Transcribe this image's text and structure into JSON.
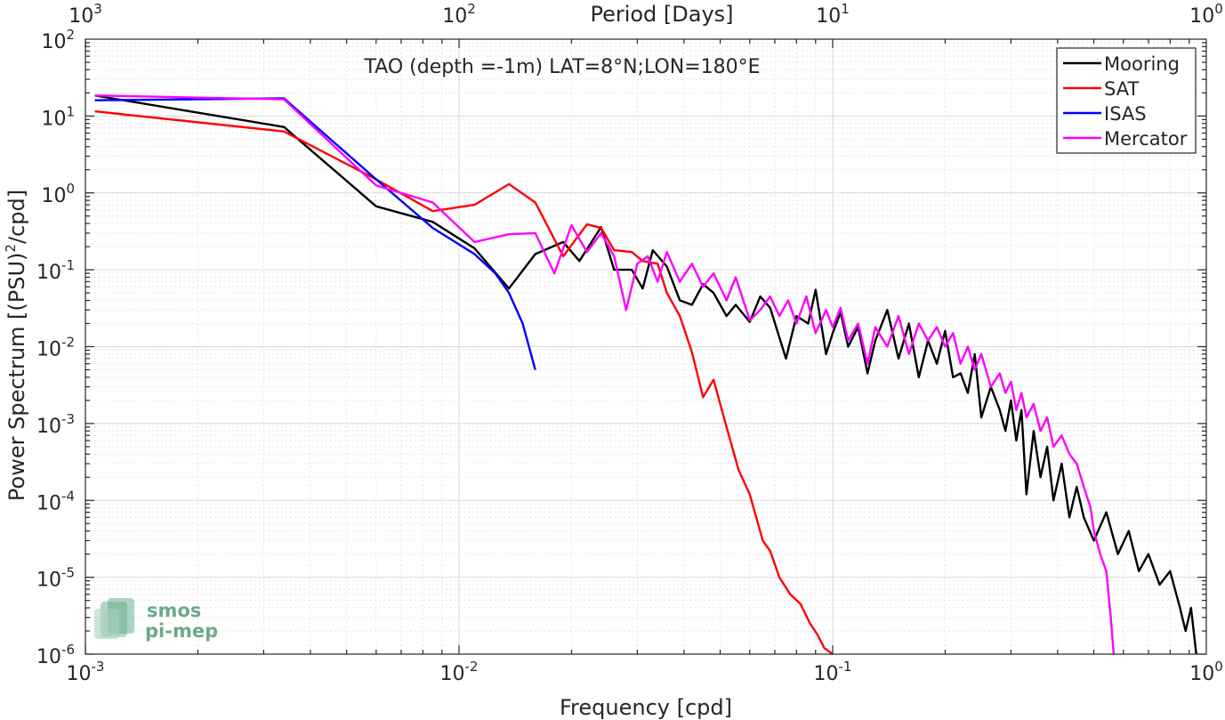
{
  "chart_data": {
    "type": "line",
    "title": "TAO (depth =-1m) LAT=8°N;LON=180°E",
    "xlabel": "Frequency [cpd]",
    "ylabel": "Power Spectrum [(PSU)",
    "ylabel_sup": "2",
    "ylabel_tail": "/cpd]",
    "top_xlabel": "Period [Days]",
    "x_scale": "log",
    "y_scale": "log",
    "xlim": [
      0.001,
      1
    ],
    "ylim": [
      1e-06,
      100
    ],
    "grid": true,
    "legend_position": "top-right",
    "x_ticks": [
      {
        "value": 0.001,
        "base": "10",
        "exp": "-3"
      },
      {
        "value": 0.01,
        "base": "10",
        "exp": "-2"
      },
      {
        "value": 0.1,
        "base": "10",
        "exp": "-1"
      },
      {
        "value": 1,
        "base": "10",
        "exp": "0"
      }
    ],
    "y_ticks": [
      {
        "value": 1e-06,
        "base": "10",
        "exp": "-6"
      },
      {
        "value": 1e-05,
        "base": "10",
        "exp": "-5"
      },
      {
        "value": 0.0001,
        "base": "10",
        "exp": "-4"
      },
      {
        "value": 0.001,
        "base": "10",
        "exp": "-3"
      },
      {
        "value": 0.01,
        "base": "10",
        "exp": "-2"
      },
      {
        "value": 0.1,
        "base": "10",
        "exp": "-1"
      },
      {
        "value": 1,
        "base": "10",
        "exp": "0"
      },
      {
        "value": 10,
        "base": "10",
        "exp": "1"
      },
      {
        "value": 100,
        "base": "10",
        "exp": "2"
      }
    ],
    "top_ticks": [
      {
        "value": 0.001,
        "base": "10",
        "exp": "3"
      },
      {
        "value": 0.01,
        "base": "10",
        "exp": "2"
      },
      {
        "value": 0.1,
        "base": "10",
        "exp": "1"
      },
      {
        "value": 1,
        "base": "10",
        "exp": "0"
      }
    ],
    "series": [
      {
        "name": "Mooring",
        "color": "#000000",
        "points": [
          [
            0.00106,
            18.5
          ],
          [
            0.0034,
            7.2
          ],
          [
            0.006,
            0.67
          ],
          [
            0.0085,
            0.42
          ],
          [
            0.011,
            0.19
          ],
          [
            0.0136,
            0.057
          ],
          [
            0.016,
            0.16
          ],
          [
            0.019,
            0.23
          ],
          [
            0.021,
            0.13
          ],
          [
            0.024,
            0.36
          ],
          [
            0.026,
            0.1
          ],
          [
            0.029,
            0.1
          ],
          [
            0.031,
            0.057
          ],
          [
            0.033,
            0.18
          ],
          [
            0.036,
            0.11
          ],
          [
            0.039,
            0.04
          ],
          [
            0.042,
            0.035
          ],
          [
            0.045,
            0.065
          ],
          [
            0.048,
            0.05
          ],
          [
            0.052,
            0.025
          ],
          [
            0.055,
            0.035
          ],
          [
            0.06,
            0.021
          ],
          [
            0.064,
            0.045
          ],
          [
            0.068,
            0.032
          ],
          [
            0.075,
            0.007
          ],
          [
            0.08,
            0.025
          ],
          [
            0.086,
            0.02
          ],
          [
            0.09,
            0.055
          ],
          [
            0.096,
            0.008
          ],
          [
            0.1,
            0.015
          ],
          [
            0.105,
            0.028
          ],
          [
            0.11,
            0.01
          ],
          [
            0.117,
            0.018
          ],
          [
            0.124,
            0.0045
          ],
          [
            0.13,
            0.012
          ],
          [
            0.14,
            0.03
          ],
          [
            0.15,
            0.007
          ],
          [
            0.16,
            0.02
          ],
          [
            0.17,
            0.004
          ],
          [
            0.18,
            0.012
          ],
          [
            0.19,
            0.006
          ],
          [
            0.2,
            0.016
          ],
          [
            0.21,
            0.004
          ],
          [
            0.22,
            0.0045
          ],
          [
            0.23,
            0.0025
          ],
          [
            0.24,
            0.008
          ],
          [
            0.25,
            0.0012
          ],
          [
            0.265,
            0.003
          ],
          [
            0.28,
            0.0015
          ],
          [
            0.29,
            0.0008
          ],
          [
            0.3,
            0.002
          ],
          [
            0.31,
            0.0006
          ],
          [
            0.32,
            0.0015
          ],
          [
            0.33,
            0.00012
          ],
          [
            0.345,
            0.0008
          ],
          [
            0.36,
            0.0002
          ],
          [
            0.375,
            0.0005
          ],
          [
            0.39,
            0.0001
          ],
          [
            0.41,
            0.0003
          ],
          [
            0.43,
            6e-05
          ],
          [
            0.45,
            0.00015
          ],
          [
            0.47,
            6e-05
          ],
          [
            0.5,
            3e-05
          ],
          [
            0.54,
            7e-05
          ],
          [
            0.58,
            2e-05
          ],
          [
            0.62,
            4e-05
          ],
          [
            0.66,
            1.2e-05
          ],
          [
            0.7,
            2e-05
          ],
          [
            0.75,
            8e-06
          ],
          [
            0.8,
            1.2e-05
          ],
          [
            0.85,
            4e-06
          ],
          [
            0.88,
            2e-06
          ],
          [
            0.91,
            4e-06
          ],
          [
            0.94,
            1e-06
          ]
        ]
      },
      {
        "name": "SAT",
        "color": "#ff0000",
        "points": [
          [
            0.00106,
            11.5
          ],
          [
            0.0034,
            6.3
          ],
          [
            0.006,
            1.5
          ],
          [
            0.0085,
            0.58
          ],
          [
            0.011,
            0.7
          ],
          [
            0.0136,
            1.3
          ],
          [
            0.016,
            0.75
          ],
          [
            0.019,
            0.15
          ],
          [
            0.022,
            0.39
          ],
          [
            0.024,
            0.35
          ],
          [
            0.026,
            0.18
          ],
          [
            0.029,
            0.17
          ],
          [
            0.031,
            0.13
          ],
          [
            0.034,
            0.12
          ],
          [
            0.036,
            0.05
          ],
          [
            0.039,
            0.025
          ],
          [
            0.042,
            0.0085
          ],
          [
            0.045,
            0.0022
          ],
          [
            0.048,
            0.0037
          ],
          [
            0.052,
            0.0009
          ],
          [
            0.056,
            0.00025
          ],
          [
            0.06,
            0.00012
          ],
          [
            0.065,
            3e-05
          ],
          [
            0.068,
            2.2e-05
          ],
          [
            0.072,
            1e-05
          ],
          [
            0.077,
            6e-06
          ],
          [
            0.082,
            4.5e-06
          ],
          [
            0.087,
            2.5e-06
          ],
          [
            0.091,
            1.8e-06
          ],
          [
            0.095,
            1.2e-06
          ],
          [
            0.1,
            1e-06
          ]
        ]
      },
      {
        "name": "ISAS",
        "color": "#0000ff",
        "points": [
          [
            0.00106,
            16
          ],
          [
            0.0034,
            17
          ],
          [
            0.006,
            1.5
          ],
          [
            0.0085,
            0.35
          ],
          [
            0.011,
            0.16
          ],
          [
            0.0125,
            0.09
          ],
          [
            0.0136,
            0.05
          ],
          [
            0.0148,
            0.02
          ],
          [
            0.016,
            0.005
          ]
        ]
      },
      {
        "name": "Mercator",
        "color": "#ff00ff",
        "points": [
          [
            0.00106,
            18.5
          ],
          [
            0.0034,
            16.5
          ],
          [
            0.006,
            1.25
          ],
          [
            0.0085,
            0.75
          ],
          [
            0.011,
            0.23
          ],
          [
            0.0136,
            0.29
          ],
          [
            0.016,
            0.3
          ],
          [
            0.018,
            0.09
          ],
          [
            0.02,
            0.38
          ],
          [
            0.022,
            0.17
          ],
          [
            0.024,
            0.3
          ],
          [
            0.026,
            0.15
          ],
          [
            0.028,
            0.03
          ],
          [
            0.03,
            0.12
          ],
          [
            0.032,
            0.15
          ],
          [
            0.034,
            0.07
          ],
          [
            0.036,
            0.17
          ],
          [
            0.039,
            0.07
          ],
          [
            0.042,
            0.12
          ],
          [
            0.045,
            0.06
          ],
          [
            0.048,
            0.09
          ],
          [
            0.052,
            0.04
          ],
          [
            0.055,
            0.08
          ],
          [
            0.06,
            0.022
          ],
          [
            0.064,
            0.03
          ],
          [
            0.068,
            0.045
          ],
          [
            0.072,
            0.025
          ],
          [
            0.076,
            0.04
          ],
          [
            0.08,
            0.02
          ],
          [
            0.085,
            0.045
          ],
          [
            0.09,
            0.015
          ],
          [
            0.096,
            0.03
          ],
          [
            0.1,
            0.018
          ],
          [
            0.105,
            0.032
          ],
          [
            0.11,
            0.012
          ],
          [
            0.117,
            0.02
          ],
          [
            0.124,
            0.006
          ],
          [
            0.13,
            0.018
          ],
          [
            0.14,
            0.01
          ],
          [
            0.15,
            0.025
          ],
          [
            0.16,
            0.008
          ],
          [
            0.17,
            0.02
          ],
          [
            0.18,
            0.012
          ],
          [
            0.19,
            0.018
          ],
          [
            0.2,
            0.01
          ],
          [
            0.21,
            0.015
          ],
          [
            0.22,
            0.006
          ],
          [
            0.23,
            0.01
          ],
          [
            0.24,
            0.005
          ],
          [
            0.25,
            0.008
          ],
          [
            0.265,
            0.003
          ],
          [
            0.28,
            0.0045
          ],
          [
            0.29,
            0.0025
          ],
          [
            0.3,
            0.0035
          ],
          [
            0.31,
            0.0015
          ],
          [
            0.32,
            0.0025
          ],
          [
            0.33,
            0.0012
          ],
          [
            0.345,
            0.0018
          ],
          [
            0.36,
            0.0008
          ],
          [
            0.375,
            0.0012
          ],
          [
            0.39,
            0.0005
          ],
          [
            0.41,
            0.0007
          ],
          [
            0.43,
            0.0004
          ],
          [
            0.45,
            0.0003
          ],
          [
            0.47,
            0.00015
          ],
          [
            0.49,
            8e-05
          ],
          [
            0.5,
            4e-05
          ],
          [
            0.52,
            2e-05
          ],
          [
            0.54,
            1.2e-05
          ],
          [
            0.555,
            3e-06
          ],
          [
            0.565,
            1e-06
          ]
        ]
      }
    ]
  },
  "logo": {
    "line1": "smos",
    "line2": "pi-mep"
  }
}
